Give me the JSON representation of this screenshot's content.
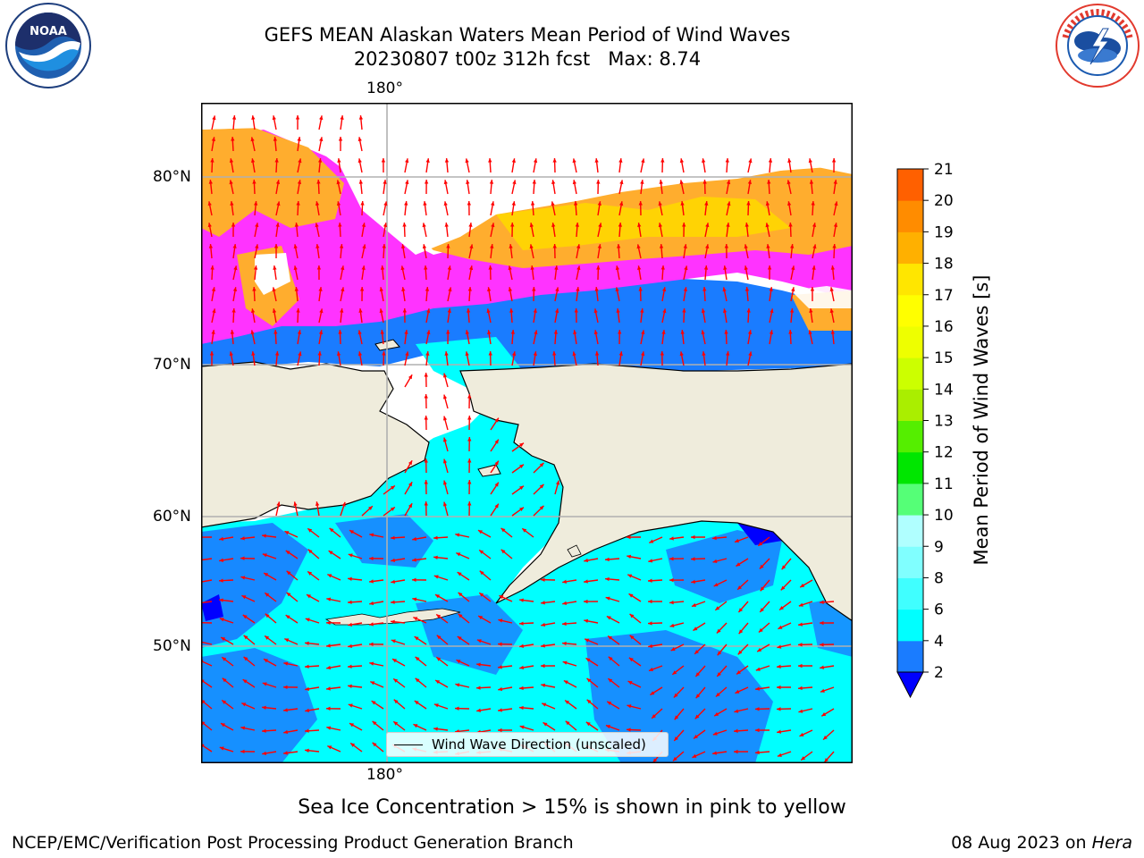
{
  "title_line1": "GEFS MEAN Alaskan Waters Mean Period of Wind Waves",
  "title_line2": "20230807 t00z 312h fcst   Max: 8.74",
  "map": {
    "top_longitude_label": "180°",
    "bottom_longitude_label": "180°",
    "latitude_labels": [
      "80°N",
      "70°N",
      "60°N",
      "50°N"
    ],
    "legend_label": "Wind Wave Direction (unscaled)",
    "colors": {
      "land": "#efecdc",
      "ice_pink": "#ff33ff",
      "ice_orange": "#ffad2e",
      "ice_yellow": "#ffd700",
      "ocean_cyan": "#00ffff",
      "ocean_blue": "#1a7cff",
      "ocean_deep": "#0000ff",
      "arrow": "#ff0000",
      "grid": "#b0b0b0"
    }
  },
  "colorbar": {
    "label": "Mean Period of Wind Waves [s]",
    "ticks": [
      "2",
      "4",
      "6",
      "8",
      "9",
      "10",
      "11",
      "12",
      "13",
      "14",
      "15",
      "16",
      "17",
      "18",
      "19",
      "20",
      "21"
    ],
    "bin_colors": [
      "#1a7cff",
      "#00ffff",
      "#40ffff",
      "#80ffff",
      "#b0ffff",
      "#55ff77",
      "#00e600",
      "#55ee00",
      "#aaee00",
      "#ccff00",
      "#eeff00",
      "#ffff00",
      "#ffe600",
      "#ffb000",
      "#ff8c00",
      "#ff6000",
      "#ff3000",
      "#ff0000"
    ],
    "below_color": "#0000ff"
  },
  "caption": "Sea Ice Concentration > 15% is shown in pink to yellow",
  "footer": {
    "left": "NCEP/EMC/Verification Post Processing Product Generation Branch",
    "date": "08 Aug 2023 on ",
    "host": "Hera"
  },
  "logos": {
    "noaa_text": "NOAA",
    "noaa_ring": "NATIONAL OCEANIC AND ATMOSPHERIC ADMINISTRATION · U.S. DEPARTMENT OF COMMERCE",
    "nws_ring": "NATIONAL WEATHER SERVICE"
  }
}
